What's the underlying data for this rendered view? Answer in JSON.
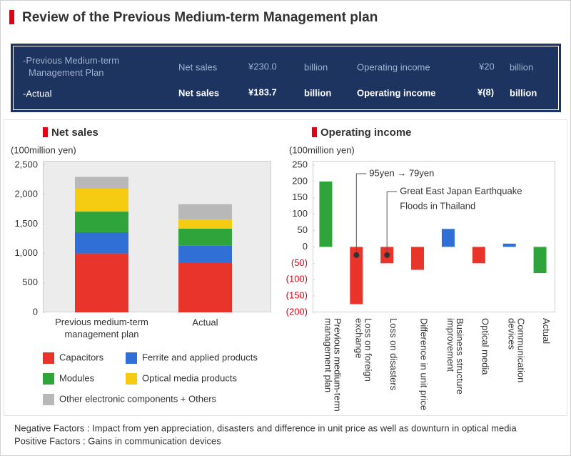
{
  "header": {
    "title": "Review of the Previous Medium-term Management plan"
  },
  "summary": {
    "plan": {
      "label": "-Previous Medium-term\nManagement Plan",
      "net_sales_label": "Net sales",
      "net_sales": "¥230.0",
      "net_sales_unit": "billion",
      "operating_income_label": "Operating income",
      "operating_income": "¥20",
      "operating_income_unit": "billion"
    },
    "actual": {
      "label": "-Actual",
      "net_sales_label": "Net sales",
      "net_sales": "¥183.7",
      "net_sales_unit": "billion",
      "operating_income_label": "Operating income",
      "operating_income": "¥(8)",
      "operating_income_unit": "billion"
    }
  },
  "chart_data": [
    {
      "type": "bar",
      "stacked": true,
      "title": "Net sales",
      "y_label": "(100million yen)",
      "categories": [
        "Previous medium-term\nmanagement plan",
        "Actual"
      ],
      "series": [
        {
          "name": "Capacitors",
          "color": "#e8342a",
          "values": [
            1000,
            850
          ]
        },
        {
          "name": "Ferrite and applied products",
          "color": "#2f6fd6",
          "values": [
            360,
            280
          ]
        },
        {
          "name": "Modules",
          "color": "#2ea43a",
          "values": [
            350,
            290
          ]
        },
        {
          "name": "Optical media products",
          "color": "#f5cc12",
          "values": [
            390,
            160
          ]
        },
        {
          "name": "Other electronic components + Others",
          "color": "#b8b8b8",
          "values": [
            200,
            257
          ]
        }
      ],
      "ylim": [
        0,
        2500
      ],
      "yticks": [
        0,
        500,
        {
          "value": 1000,
          "label": "1,000"
        },
        {
          "value": 1500,
          "label": "1,500"
        },
        {
          "value": 2000,
          "label": "2,000"
        },
        {
          "value": 2500,
          "label": "2,500"
        }
      ]
    },
    {
      "type": "bar",
      "title": "Operating income",
      "y_label": "(100million yen)",
      "categories": [
        "Previous medium-term\nmanagement plan",
        "Loss on foreign\nexchange",
        "Loss on disasters",
        "Difference in unit price",
        "Business structure\nimprovement",
        "Optical media",
        "Communication\ndevices",
        "Actual"
      ],
      "values": [
        200,
        -175,
        -50,
        -70,
        55,
        -50,
        10,
        -80
      ],
      "colors": [
        "#2ea43a",
        "#e8342a",
        "#e8342a",
        "#e8342a",
        "#2f6fd6",
        "#e8342a",
        "#2f6fd6",
        "#2ea43a"
      ],
      "ylim": [
        -200,
        250
      ],
      "yticks": [
        {
          "value": -200,
          "label": "(200)"
        },
        {
          "value": -150,
          "label": "(150)"
        },
        {
          "value": -100,
          "label": "(100)"
        },
        {
          "value": -50,
          "label": "(50)"
        },
        0,
        50,
        100,
        150,
        200,
        250
      ],
      "annotations": [
        "95yen → 79yen",
        "Great East Japan Earthquake",
        "Floods in Thailand"
      ]
    }
  ],
  "notes": [
    "Negative Factors : Impact from yen appreciation, disasters and difference in unit price as well as downturn in optical media",
    "Positive Factors : Gains in communication devices"
  ]
}
